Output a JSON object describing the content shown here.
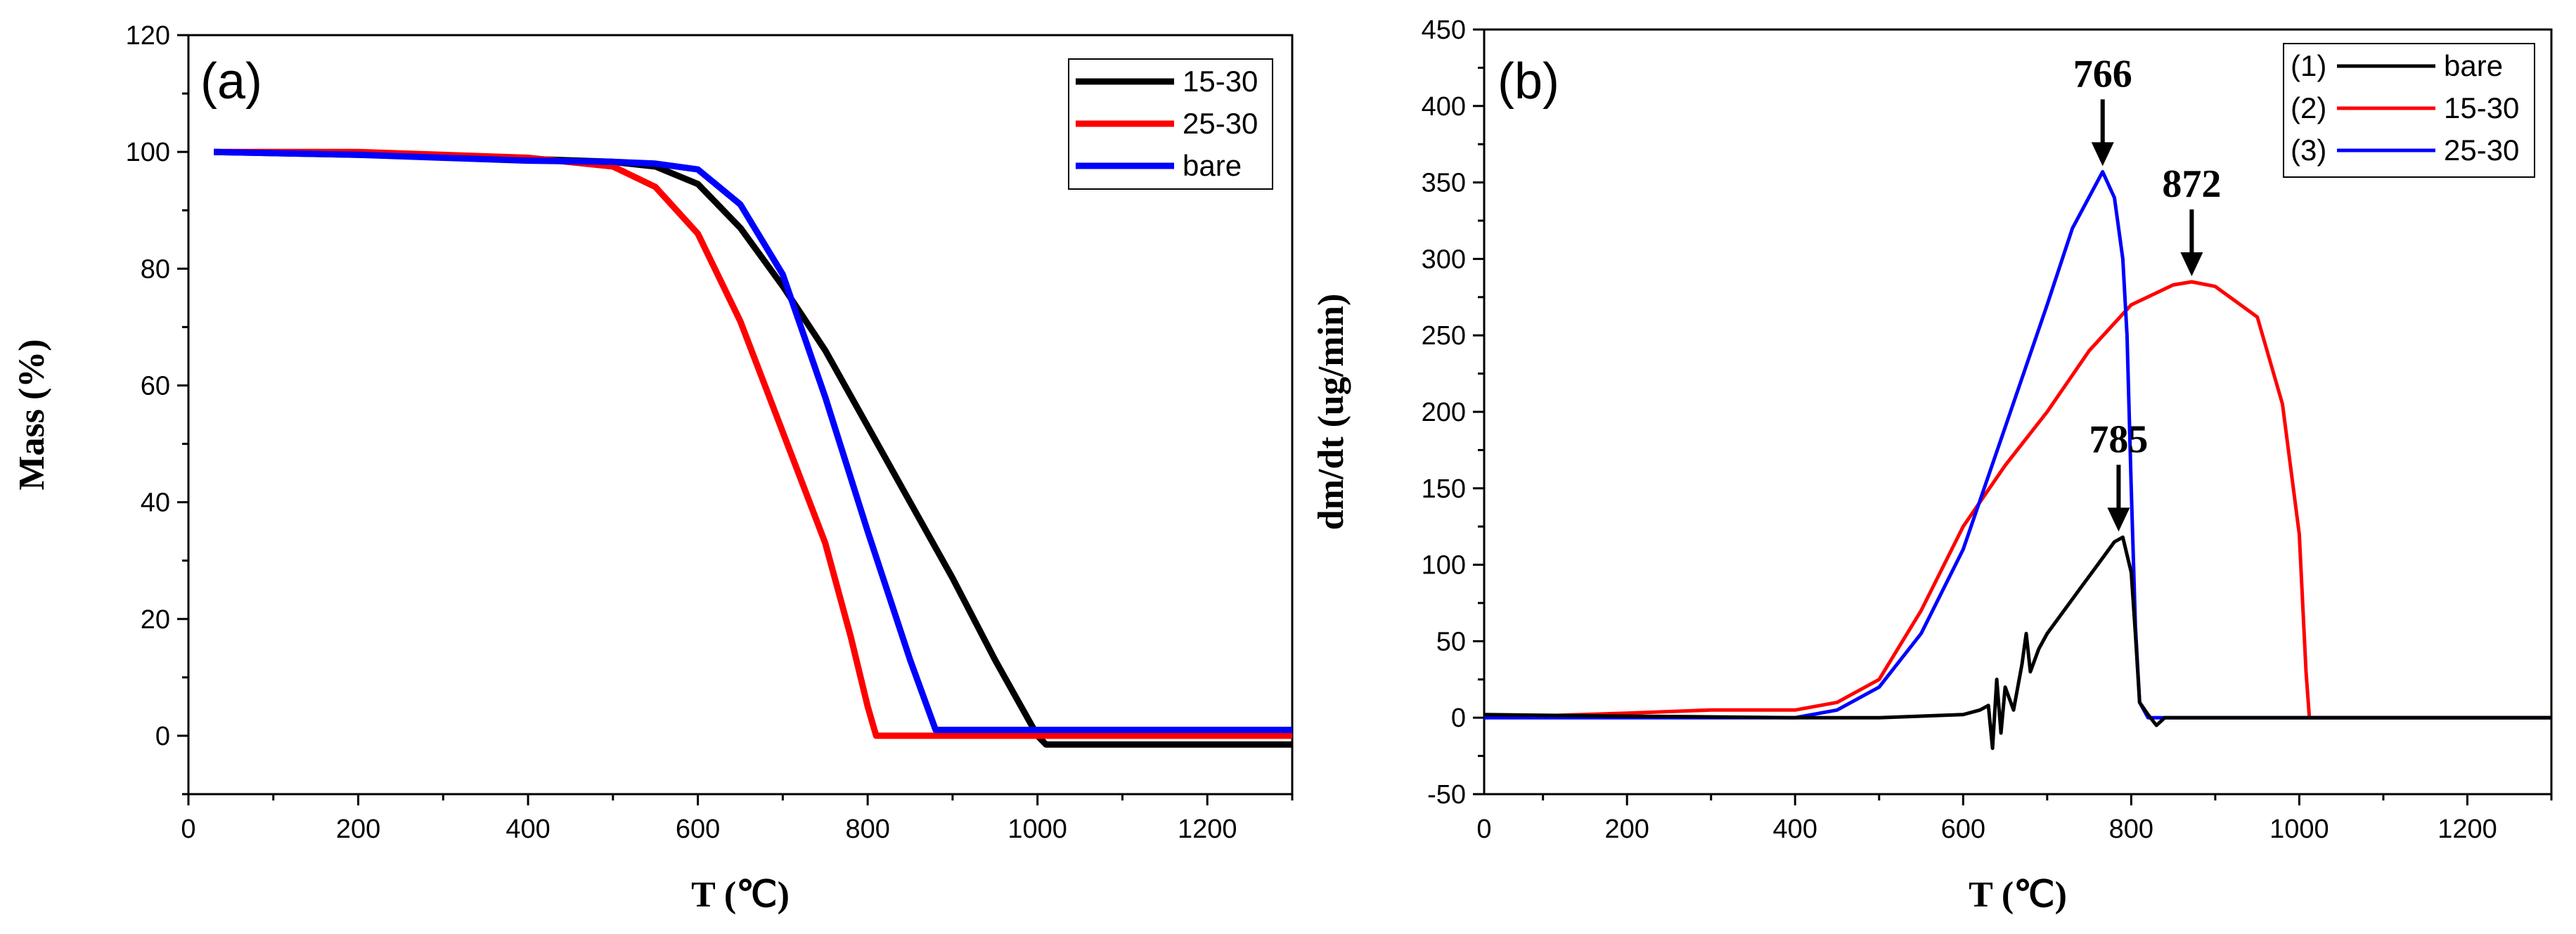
{
  "chart_data": [
    {
      "type": "line",
      "panel_label": "(a)",
      "xlabel": "T (℃)",
      "ylabel": "Mass  (%)",
      "xlim": [
        0,
        1300
      ],
      "ylim": [
        -10,
        120
      ],
      "xticks": [
        0,
        200,
        400,
        600,
        800,
        1000,
        1200
      ],
      "yticks": [
        0,
        20,
        40,
        60,
        80,
        100,
        120
      ],
      "legend_position": "top-right",
      "series": [
        {
          "name": "15-30",
          "color": "#000000",
          "x": [
            30,
            200,
            400,
            500,
            550,
            600,
            650,
            700,
            750,
            800,
            850,
            900,
            950,
            1000,
            1010,
            1100,
            1300
          ],
          "y": [
            100,
            99.5,
            98.8,
            98.3,
            97.5,
            94.5,
            87,
            77,
            66,
            53,
            40,
            27,
            13,
            0,
            -1.5,
            -1.5,
            -1.5
          ]
        },
        {
          "name": "25-30",
          "color": "#ff0000",
          "x": [
            30,
            200,
            400,
            500,
            550,
            600,
            650,
            700,
            750,
            780,
            800,
            810,
            900,
            1100,
            1300
          ],
          "y": [
            100,
            100,
            99,
            97.5,
            94,
            86,
            71,
            52,
            33,
            17,
            5,
            0,
            0,
            0,
            0
          ]
        },
        {
          "name": "bare",
          "color": "#0000ff",
          "x": [
            30,
            200,
            300,
            400,
            500,
            550,
            600,
            650,
            700,
            750,
            800,
            850,
            880,
            1000,
            1300
          ],
          "y": [
            100,
            99.5,
            99,
            98.5,
            98.3,
            98,
            97,
            91,
            79,
            58,
            35,
            13,
            1,
            1,
            1
          ]
        }
      ]
    },
    {
      "type": "line",
      "panel_label": "(b)",
      "xlabel": "T (℃)",
      "ylabel": "dm/dt (ug/min)",
      "xlim": [
        30,
        1300
      ],
      "ylim": [
        -50,
        450
      ],
      "xticks": [
        0,
        200,
        400,
        600,
        800,
        1000,
        1200
      ],
      "yticks": [
        -50,
        0,
        50,
        100,
        150,
        200,
        250,
        300,
        350,
        400,
        450
      ],
      "legend_position": "top-right",
      "series": [
        {
          "name": "bare",
          "legend_index": "(1)",
          "color": "#000000",
          "x": [
            30,
            200,
            400,
            500,
            600,
            620,
            630,
            635,
            640,
            645,
            650,
            660,
            670,
            675,
            680,
            690,
            700,
            720,
            740,
            760,
            780,
            790,
            800,
            805,
            810,
            820,
            830,
            840,
            900,
            1000,
            1300
          ],
          "y": [
            2,
            1,
            0,
            0,
            2,
            5,
            8,
            -20,
            25,
            -10,
            20,
            5,
            35,
            55,
            30,
            45,
            55,
            70,
            85,
            100,
            115,
            118,
            95,
            55,
            10,
            2,
            -5,
            0,
            0,
            0,
            0
          ]
        },
        {
          "name": "15-30",
          "legend_index": "(2)",
          "color": "#ff0000",
          "x": [
            30,
            200,
            300,
            400,
            450,
            500,
            550,
            600,
            650,
            700,
            750,
            800,
            850,
            872,
            900,
            950,
            980,
            1000,
            1008,
            1012,
            1100,
            1300
          ],
          "y": [
            0,
            3,
            5,
            5,
            10,
            25,
            70,
            125,
            165,
            200,
            240,
            270,
            283,
            285,
            282,
            262,
            205,
            120,
            30,
            0,
            0,
            0
          ]
        },
        {
          "name": "25-30",
          "legend_index": "(3)",
          "color": "#0000ff",
          "x": [
            30,
            200,
            400,
            450,
            500,
            550,
            600,
            650,
            700,
            730,
            766,
            780,
            790,
            795,
            800,
            805,
            810,
            820,
            900,
            1300
          ],
          "y": [
            0,
            0,
            0,
            5,
            20,
            55,
            110,
            190,
            270,
            320,
            357,
            340,
            300,
            250,
            150,
            60,
            10,
            0,
            0,
            0
          ]
        }
      ],
      "annotations": [
        {
          "text": "766",
          "x": 766,
          "y": 357
        },
        {
          "text": "872",
          "x": 872,
          "y": 285
        },
        {
          "text": "785",
          "x": 785,
          "y": 118
        }
      ]
    }
  ]
}
